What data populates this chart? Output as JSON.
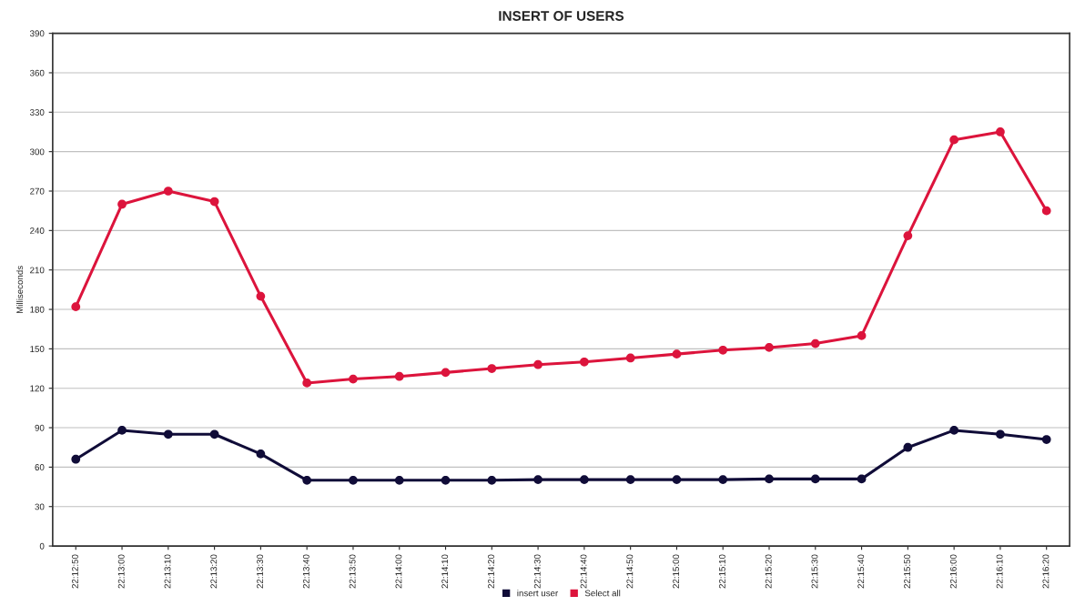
{
  "chart_data": {
    "type": "line",
    "title": "INSERT OF USERS",
    "ylabel": "Milliseconds",
    "categories": [
      "22:12:50",
      "22:13:00",
      "22:13:10",
      "22:13:20",
      "22:13:30",
      "22:13:40",
      "22:13:50",
      "22:14:00",
      "22:14:10",
      "22:14:20",
      "22:14:30",
      "22:14:40",
      "22:14:50",
      "22:15:00",
      "22:15:10",
      "22:15:20",
      "22:15:30",
      "22:15:40",
      "22:15:50",
      "22:16:00",
      "22:16:10",
      "22:16:20"
    ],
    "series": [
      {
        "name": "insert user",
        "color": "#100c38",
        "values": [
          66,
          88,
          85,
          85,
          70,
          50,
          50,
          50,
          50,
          50,
          50.5,
          50.5,
          50.5,
          50.5,
          50.5,
          51,
          51,
          51,
          75,
          88,
          85,
          81
        ]
      },
      {
        "name": "Select all",
        "color": "#dc143c",
        "values": [
          182,
          260,
          270,
          262,
          190,
          124,
          127,
          129,
          132,
          135,
          138,
          140,
          143,
          146,
          149,
          151,
          154,
          160,
          236,
          309,
          315,
          255
        ]
      }
    ],
    "ylim": [
      0,
      390
    ],
    "yticks": [
      0,
      30,
      60,
      90,
      120,
      150,
      180,
      210,
      240,
      270,
      300,
      330,
      360,
      390
    ],
    "grid": "y",
    "legend": "bottom",
    "marker": "circle",
    "line_style": "solid"
  }
}
